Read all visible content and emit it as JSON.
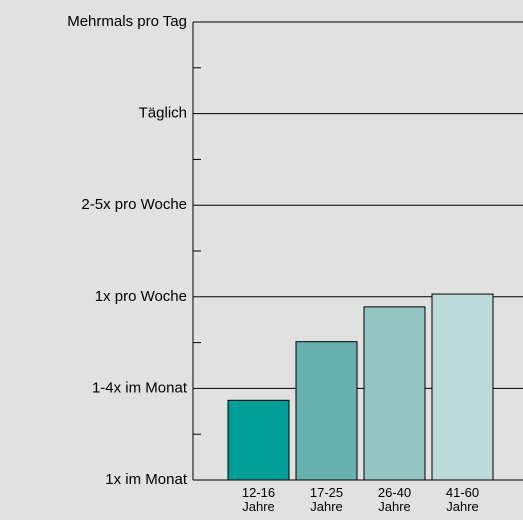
{
  "chart_data": {
    "type": "bar",
    "categories": [
      "12-16 Jahre",
      "17-25 Jahre",
      "26-40 Jahre",
      "41-60 Jahre"
    ],
    "series": [
      {
        "values": [
          0.87,
          1.51,
          1.89,
          2.03
        ],
        "colors": [
          "#009e96",
          "#66b0ad",
          "#93c5c2",
          "#bcdad8"
        ]
      }
    ],
    "ylim": [
      0,
      5
    ],
    "yticks": [
      {
        "value": 0,
        "label": "1x im Monat"
      },
      {
        "value": 1,
        "label": "1-4x im Monat"
      },
      {
        "value": 2,
        "label": "1x pro Woche"
      },
      {
        "value": 3,
        "label": "2-5x pro Woche"
      },
      {
        "value": 4,
        "label": "Täglich"
      },
      {
        "value": 5,
        "label": "Mehrmals pro Tag"
      }
    ],
    "yminorticks": [
      0.5,
      1.5,
      2.5,
      3.5,
      4.5
    ],
    "grid": true
  }
}
